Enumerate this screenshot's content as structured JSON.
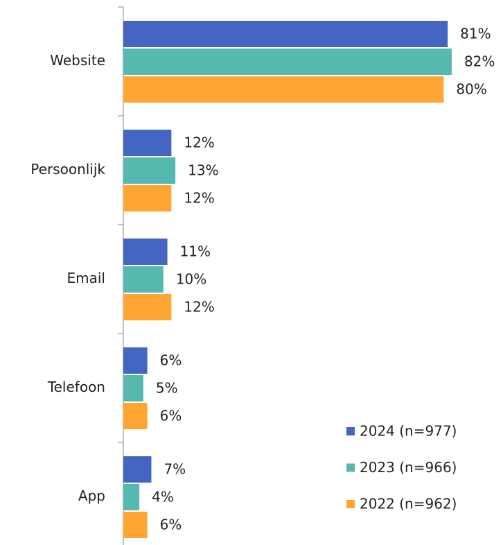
{
  "chart_data": {
    "type": "bar",
    "orientation": "horizontal",
    "categories": [
      "Website",
      "Persoonlijk",
      "Email",
      "Telefoon",
      "App"
    ],
    "series": [
      {
        "name": "2024 (n=977)",
        "color": "#4466c2",
        "values": [
          81,
          12,
          11,
          6,
          7
        ],
        "value_labels": [
          "81%",
          "12%",
          "11%",
          "6%",
          "7%"
        ]
      },
      {
        "name": "2023 (n=966)",
        "color": "#55b9b0",
        "values": [
          82,
          13,
          10,
          5,
          4
        ],
        "value_labels": [
          "82%",
          "13%",
          "10%",
          "5%",
          "4%"
        ]
      },
      {
        "name": "2022 (n=962)",
        "color": "#ffa533",
        "values": [
          80,
          12,
          12,
          6,
          6
        ],
        "value_labels": [
          "80%",
          "12%",
          "12%",
          "6%",
          "6%"
        ]
      }
    ],
    "legend": "bottom-right"
  }
}
